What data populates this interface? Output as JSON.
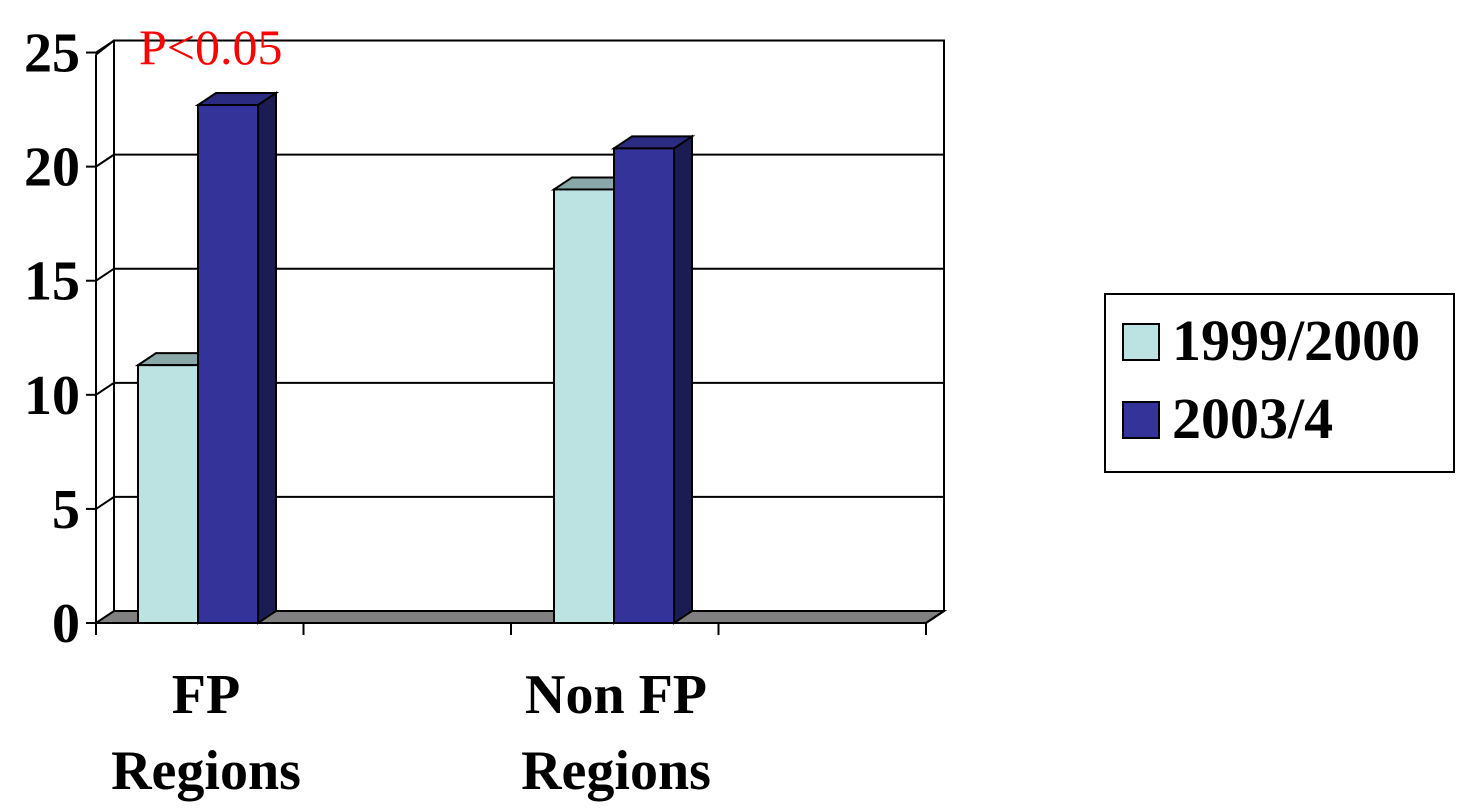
{
  "chart_data": {
    "type": "bar",
    "style": "3d-clustered-column",
    "categories": [
      [
        "FP",
        "Regions"
      ],
      [
        "Non FP",
        "Regions"
      ]
    ],
    "series": [
      {
        "name": "1999/2000",
        "values": [
          11.3,
          19.0
        ],
        "color": "#bde2e2"
      },
      {
        "name": "2003/4",
        "values": [
          22.7,
          20.8
        ],
        "color": "#333399"
      }
    ],
    "ylim": [
      0,
      25
    ],
    "yticks": [
      0,
      5,
      10,
      15,
      20,
      25
    ],
    "grid": true,
    "legend": "right",
    "annotation": {
      "text": "P<0.05",
      "color": "#ff0000"
    },
    "title": "",
    "xlabel": "",
    "ylabel": ""
  }
}
